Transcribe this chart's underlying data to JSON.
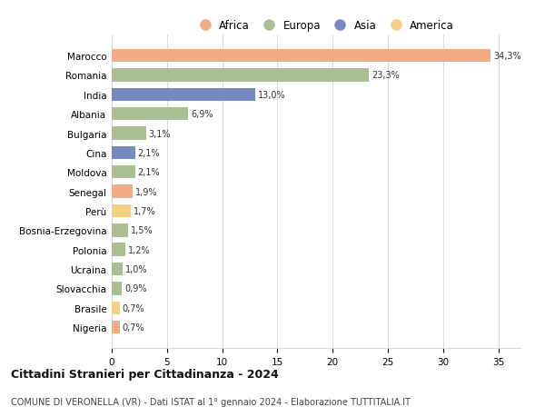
{
  "countries": [
    "Marocco",
    "Romania",
    "India",
    "Albania",
    "Bulgaria",
    "Cina",
    "Moldova",
    "Senegal",
    "Perù",
    "Bosnia-Erzegovina",
    "Polonia",
    "Ucraina",
    "Slovacchia",
    "Brasile",
    "Nigeria"
  ],
  "values": [
    34.3,
    23.3,
    13.0,
    6.9,
    3.1,
    2.1,
    2.1,
    1.9,
    1.7,
    1.5,
    1.2,
    1.0,
    0.9,
    0.7,
    0.7
  ],
  "labels": [
    "34,3%",
    "23,3%",
    "13,0%",
    "6,9%",
    "3,1%",
    "2,1%",
    "2,1%",
    "1,9%",
    "1,7%",
    "1,5%",
    "1,2%",
    "1,0%",
    "0,9%",
    "0,7%",
    "0,7%"
  ],
  "continents": [
    "Africa",
    "Europa",
    "Asia",
    "Europa",
    "Europa",
    "Asia",
    "Europa",
    "Africa",
    "America",
    "Europa",
    "Europa",
    "Europa",
    "Europa",
    "America",
    "Africa"
  ],
  "continent_colors": {
    "Africa": "#F2AC82",
    "Europa": "#ABBE92",
    "Asia": "#7888C0",
    "America": "#F5D080"
  },
  "legend_order": [
    "Africa",
    "Europa",
    "Asia",
    "America"
  ],
  "title": "Cittadini Stranieri per Cittadinanza - 2024",
  "subtitle": "COMUNE DI VERONELLA (VR) - Dati ISTAT al 1° gennaio 2024 - Elaborazione TUTTITALIA.IT",
  "xlim": [
    0,
    37
  ],
  "xticks": [
    0,
    5,
    10,
    15,
    20,
    25,
    30,
    35
  ],
  "bg_color": "#ffffff",
  "grid_color": "#d8d8d8",
  "bar_height": 0.68
}
